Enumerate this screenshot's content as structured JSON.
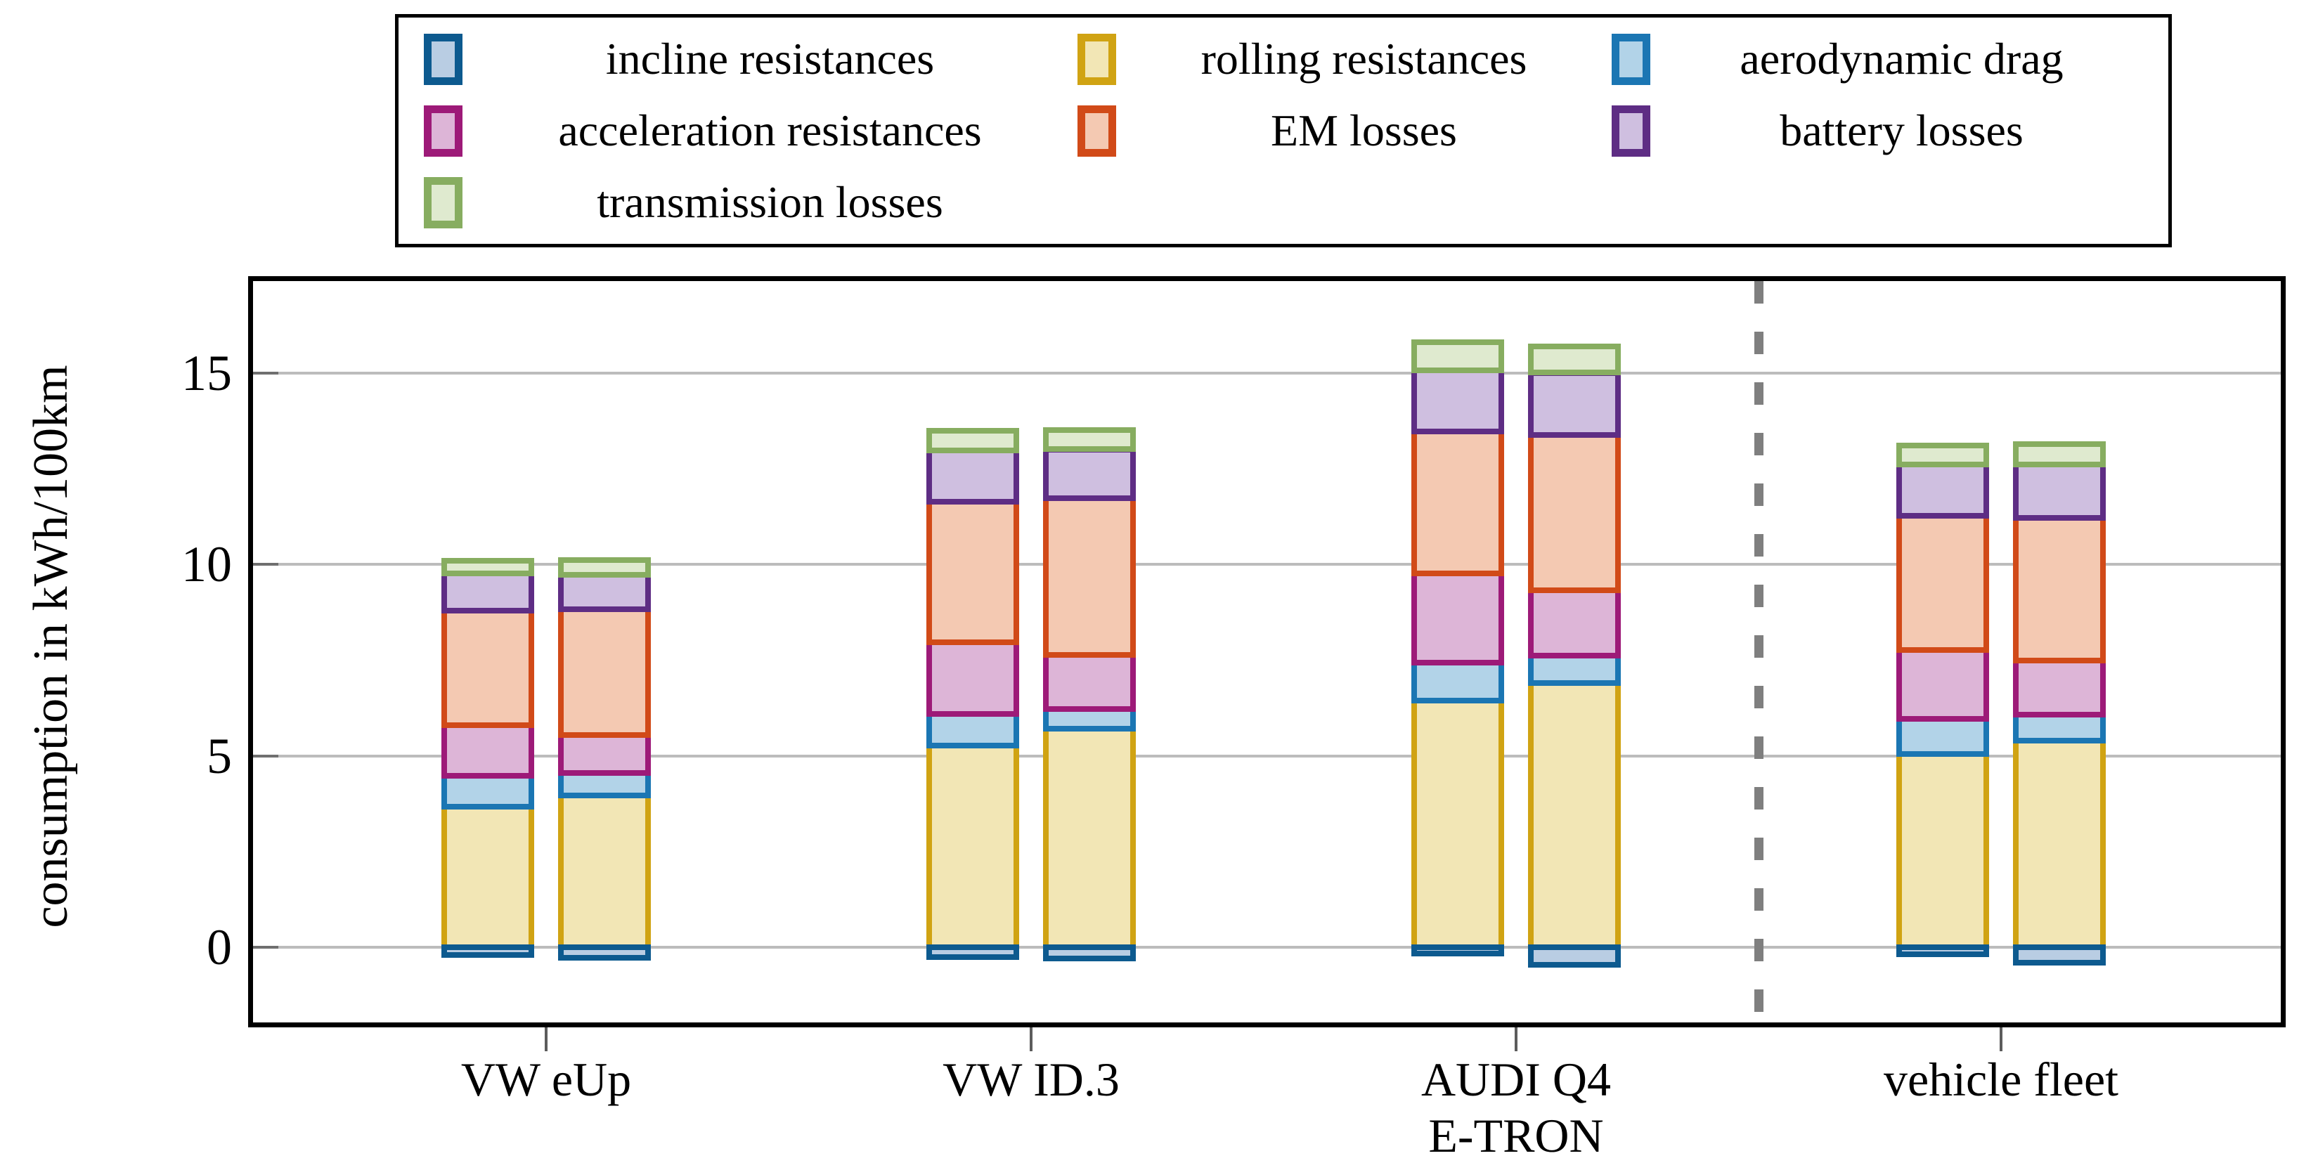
{
  "figure": {
    "y_axis_label": "consumption in kWh/100km",
    "y_unit": "kWh/100km",
    "y_ticks": [
      0,
      5,
      10,
      15
    ],
    "separator": "dashed vertical line between AUDI Q4 E-TRON and vehicle fleet",
    "colors": {
      "gridline": "#bcbcbc",
      "axis_frame": "#000000",
      "dashed_separator": "#7f7f7f",
      "background": "#ffffff"
    }
  },
  "chart_data": {
    "type": "bar",
    "stacked": true,
    "grid": true,
    "legend_position": "top",
    "categories": [
      "VW eUp",
      "VW ID.3",
      "AUDI Q4\nE-TRON",
      "vehicle fleet"
    ],
    "bars_per_category": 2,
    "ylim": [
      -2,
      17.4
    ],
    "ylabel": "consumption in kWh/100km",
    "series": [
      {
        "name": "incline resistances",
        "border": "#0d5a8f",
        "fill": "#b9cde3",
        "values": [
          -0.2,
          -0.27,
          -0.25,
          -0.3,
          -0.17,
          -0.45,
          -0.19,
          -0.4
        ]
      },
      {
        "name": "rolling resistances",
        "border": "#d0a313",
        "fill": "#f2e6b5",
        "values": [
          3.67,
          3.97,
          5.27,
          5.71,
          6.44,
          6.9,
          5.04,
          5.4
        ]
      },
      {
        "name": "aerodynamic drag",
        "border": "#1b76b3",
        "fill": "#b2d3e8",
        "values": [
          0.81,
          0.58,
          0.82,
          0.51,
          0.99,
          0.71,
          0.93,
          0.68
        ]
      },
      {
        "name": "acceleration resistances",
        "border": "#9d1a78",
        "fill": "#ddb5d7",
        "values": [
          1.31,
          0.99,
          1.87,
          1.42,
          2.34,
          1.72,
          1.8,
          1.41
        ]
      },
      {
        "name": "EM losses",
        "border": "#d14a18",
        "fill": "#f4c9b2",
        "values": [
          3.0,
          3.29,
          3.68,
          4.08,
          3.69,
          4.04,
          3.5,
          3.73
        ]
      },
      {
        "name": "battery losses",
        "border": "#5e2d84",
        "fill": "#cfbfe0",
        "values": [
          0.98,
          0.9,
          1.33,
          1.28,
          1.6,
          1.63,
          1.33,
          1.39
        ]
      },
      {
        "name": "transmission losses",
        "border": "#87ad60",
        "fill": "#dfeacf",
        "values": [
          0.33,
          0.38,
          0.51,
          0.51,
          0.74,
          0.68,
          0.5,
          0.53
        ]
      }
    ],
    "stack_totals_positive": [
      10.1,
      10.11,
      13.48,
      13.51,
      15.8,
      15.68,
      13.1,
      13.14
    ]
  }
}
